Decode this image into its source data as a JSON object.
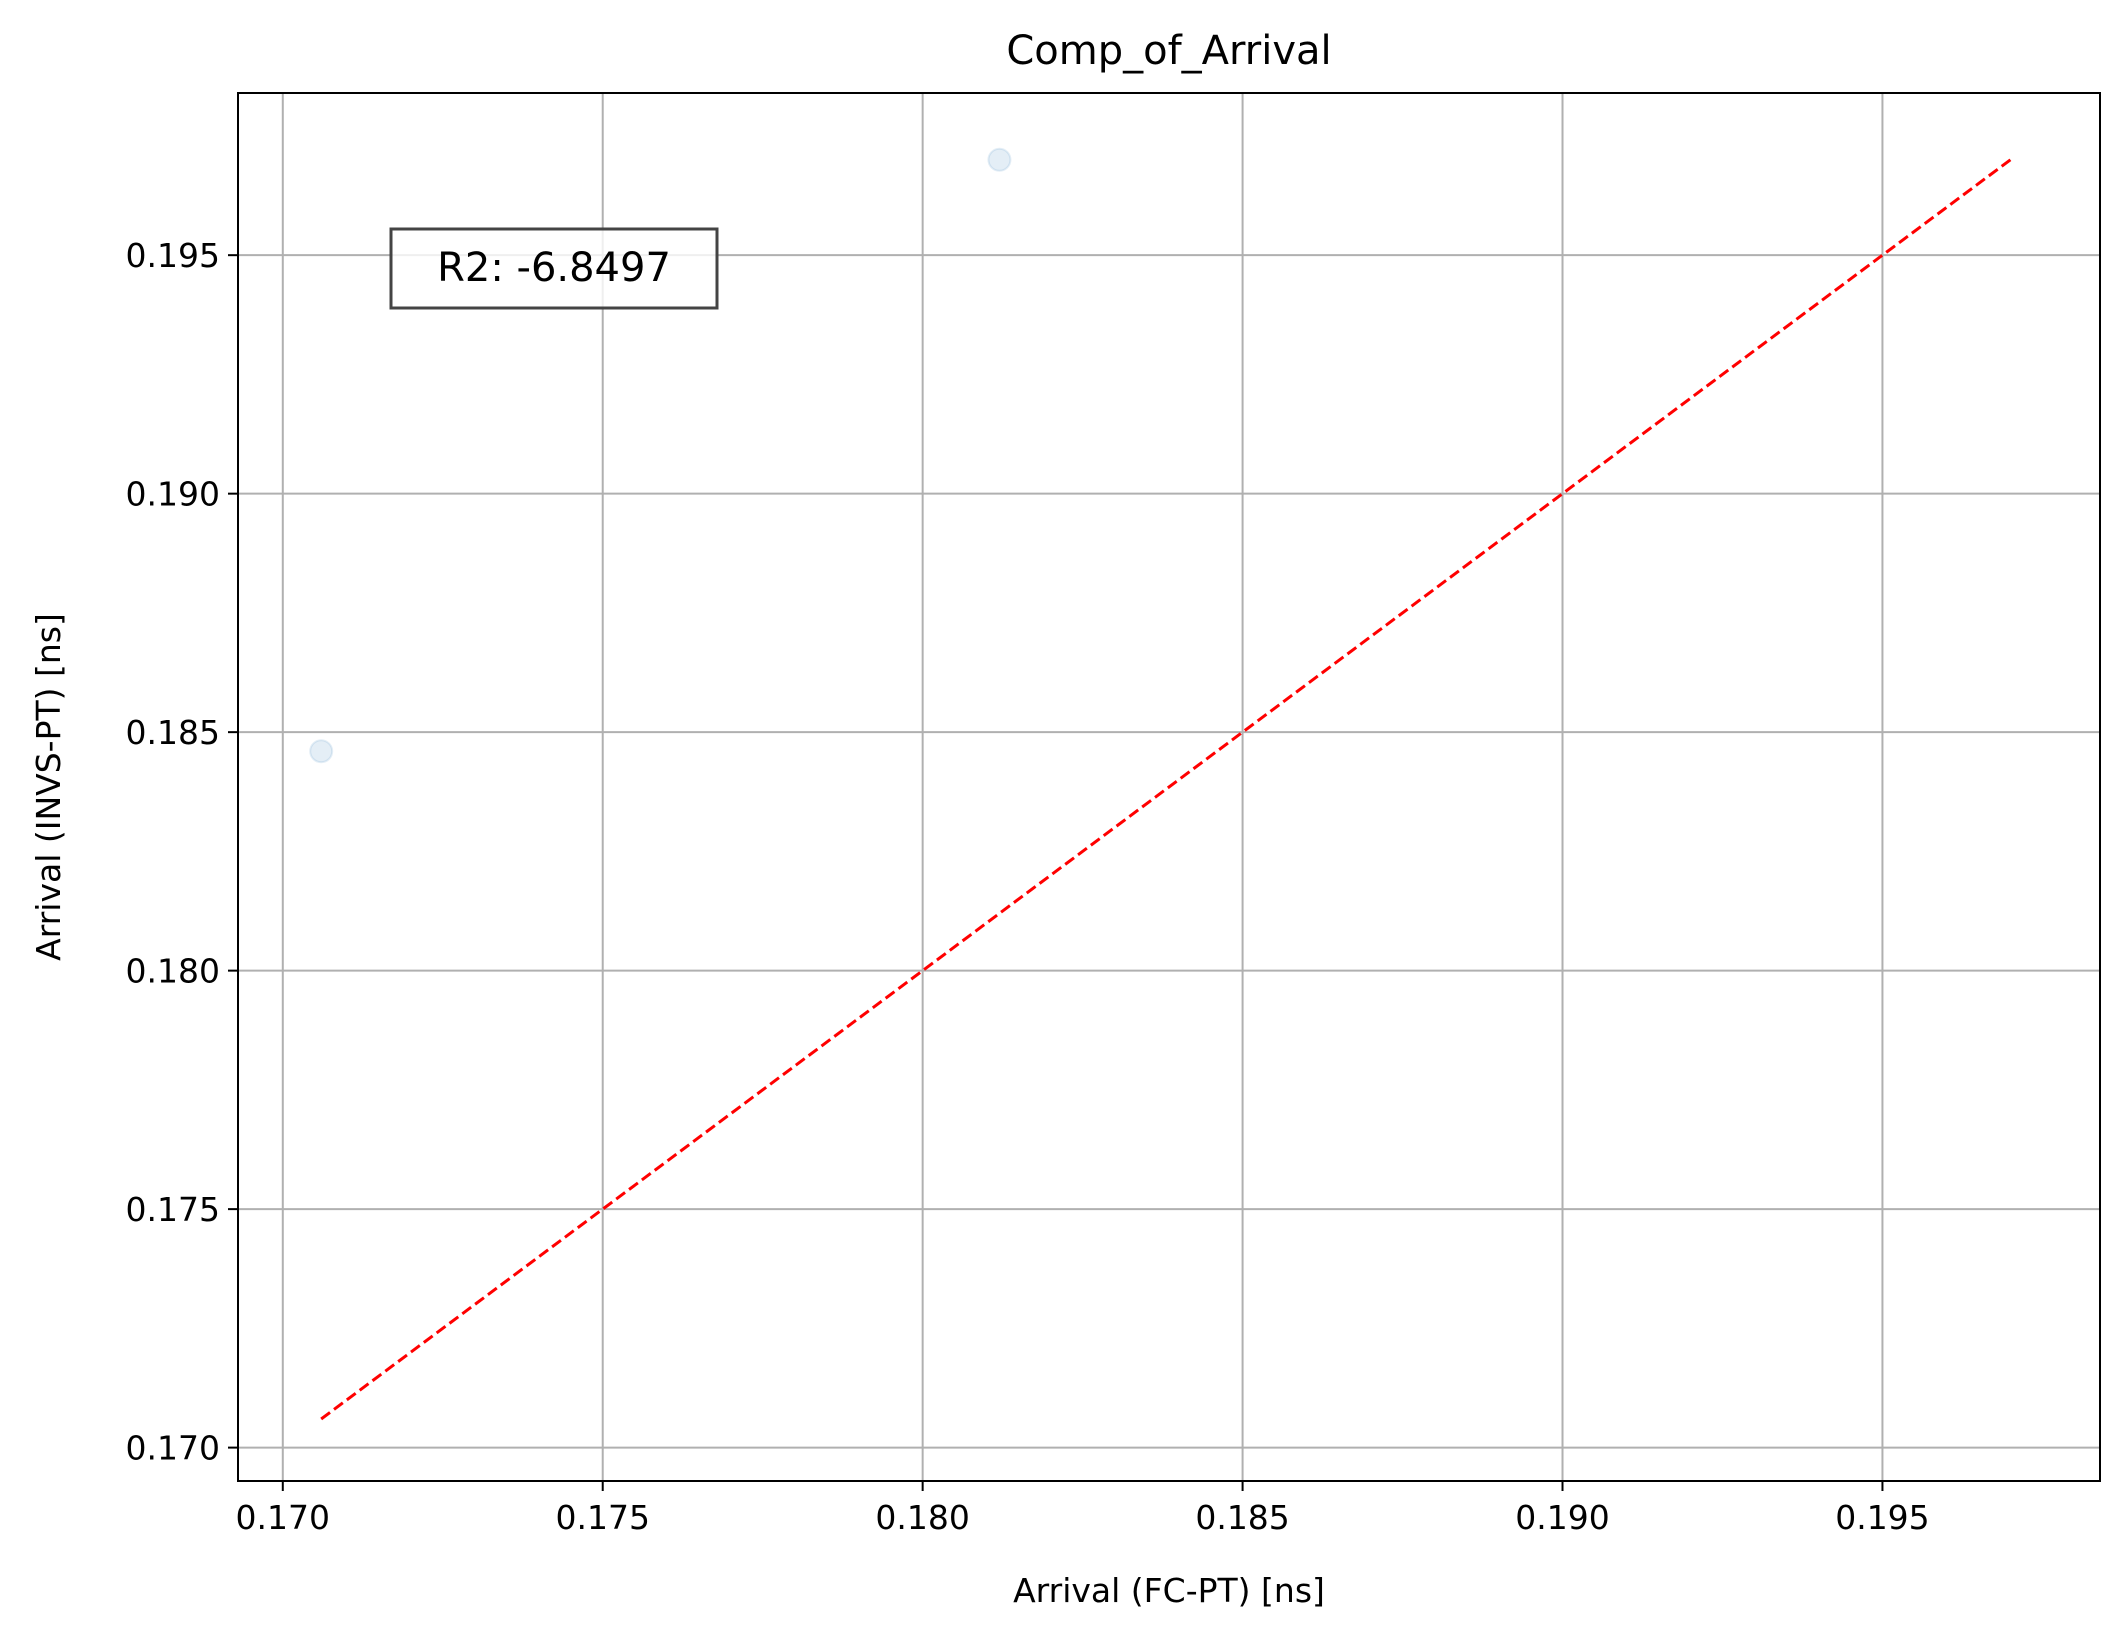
{
  "chart_data": {
    "type": "scatter",
    "title": "Comp_of_Arrival",
    "xlabel": "Arrival (FC-PT) [ns]",
    "ylabel": "Arrival (INVS-PT) [ns]",
    "xlim": [
      0.1693,
      0.1984
    ],
    "ylim": [
      0.1693,
      0.1984
    ],
    "xticks": [
      "0.170",
      "0.175",
      "0.180",
      "0.185",
      "0.190",
      "0.195"
    ],
    "yticks": [
      "0.170",
      "0.175",
      "0.180",
      "0.185",
      "0.190",
      "0.195"
    ],
    "grid": true,
    "points": [
      {
        "x": 0.1706,
        "y": 0.1846
      },
      {
        "x": 0.1812,
        "y": 0.197
      }
    ],
    "reference_line": {
      "style": "dashed",
      "color": "#ff0000",
      "x": [
        0.1706,
        0.197
      ],
      "y": [
        0.1706,
        0.197
      ]
    },
    "annotation": {
      "text": "R2: -6.8497",
      "placement": "top-left"
    },
    "point_color": "#1f77b4"
  }
}
